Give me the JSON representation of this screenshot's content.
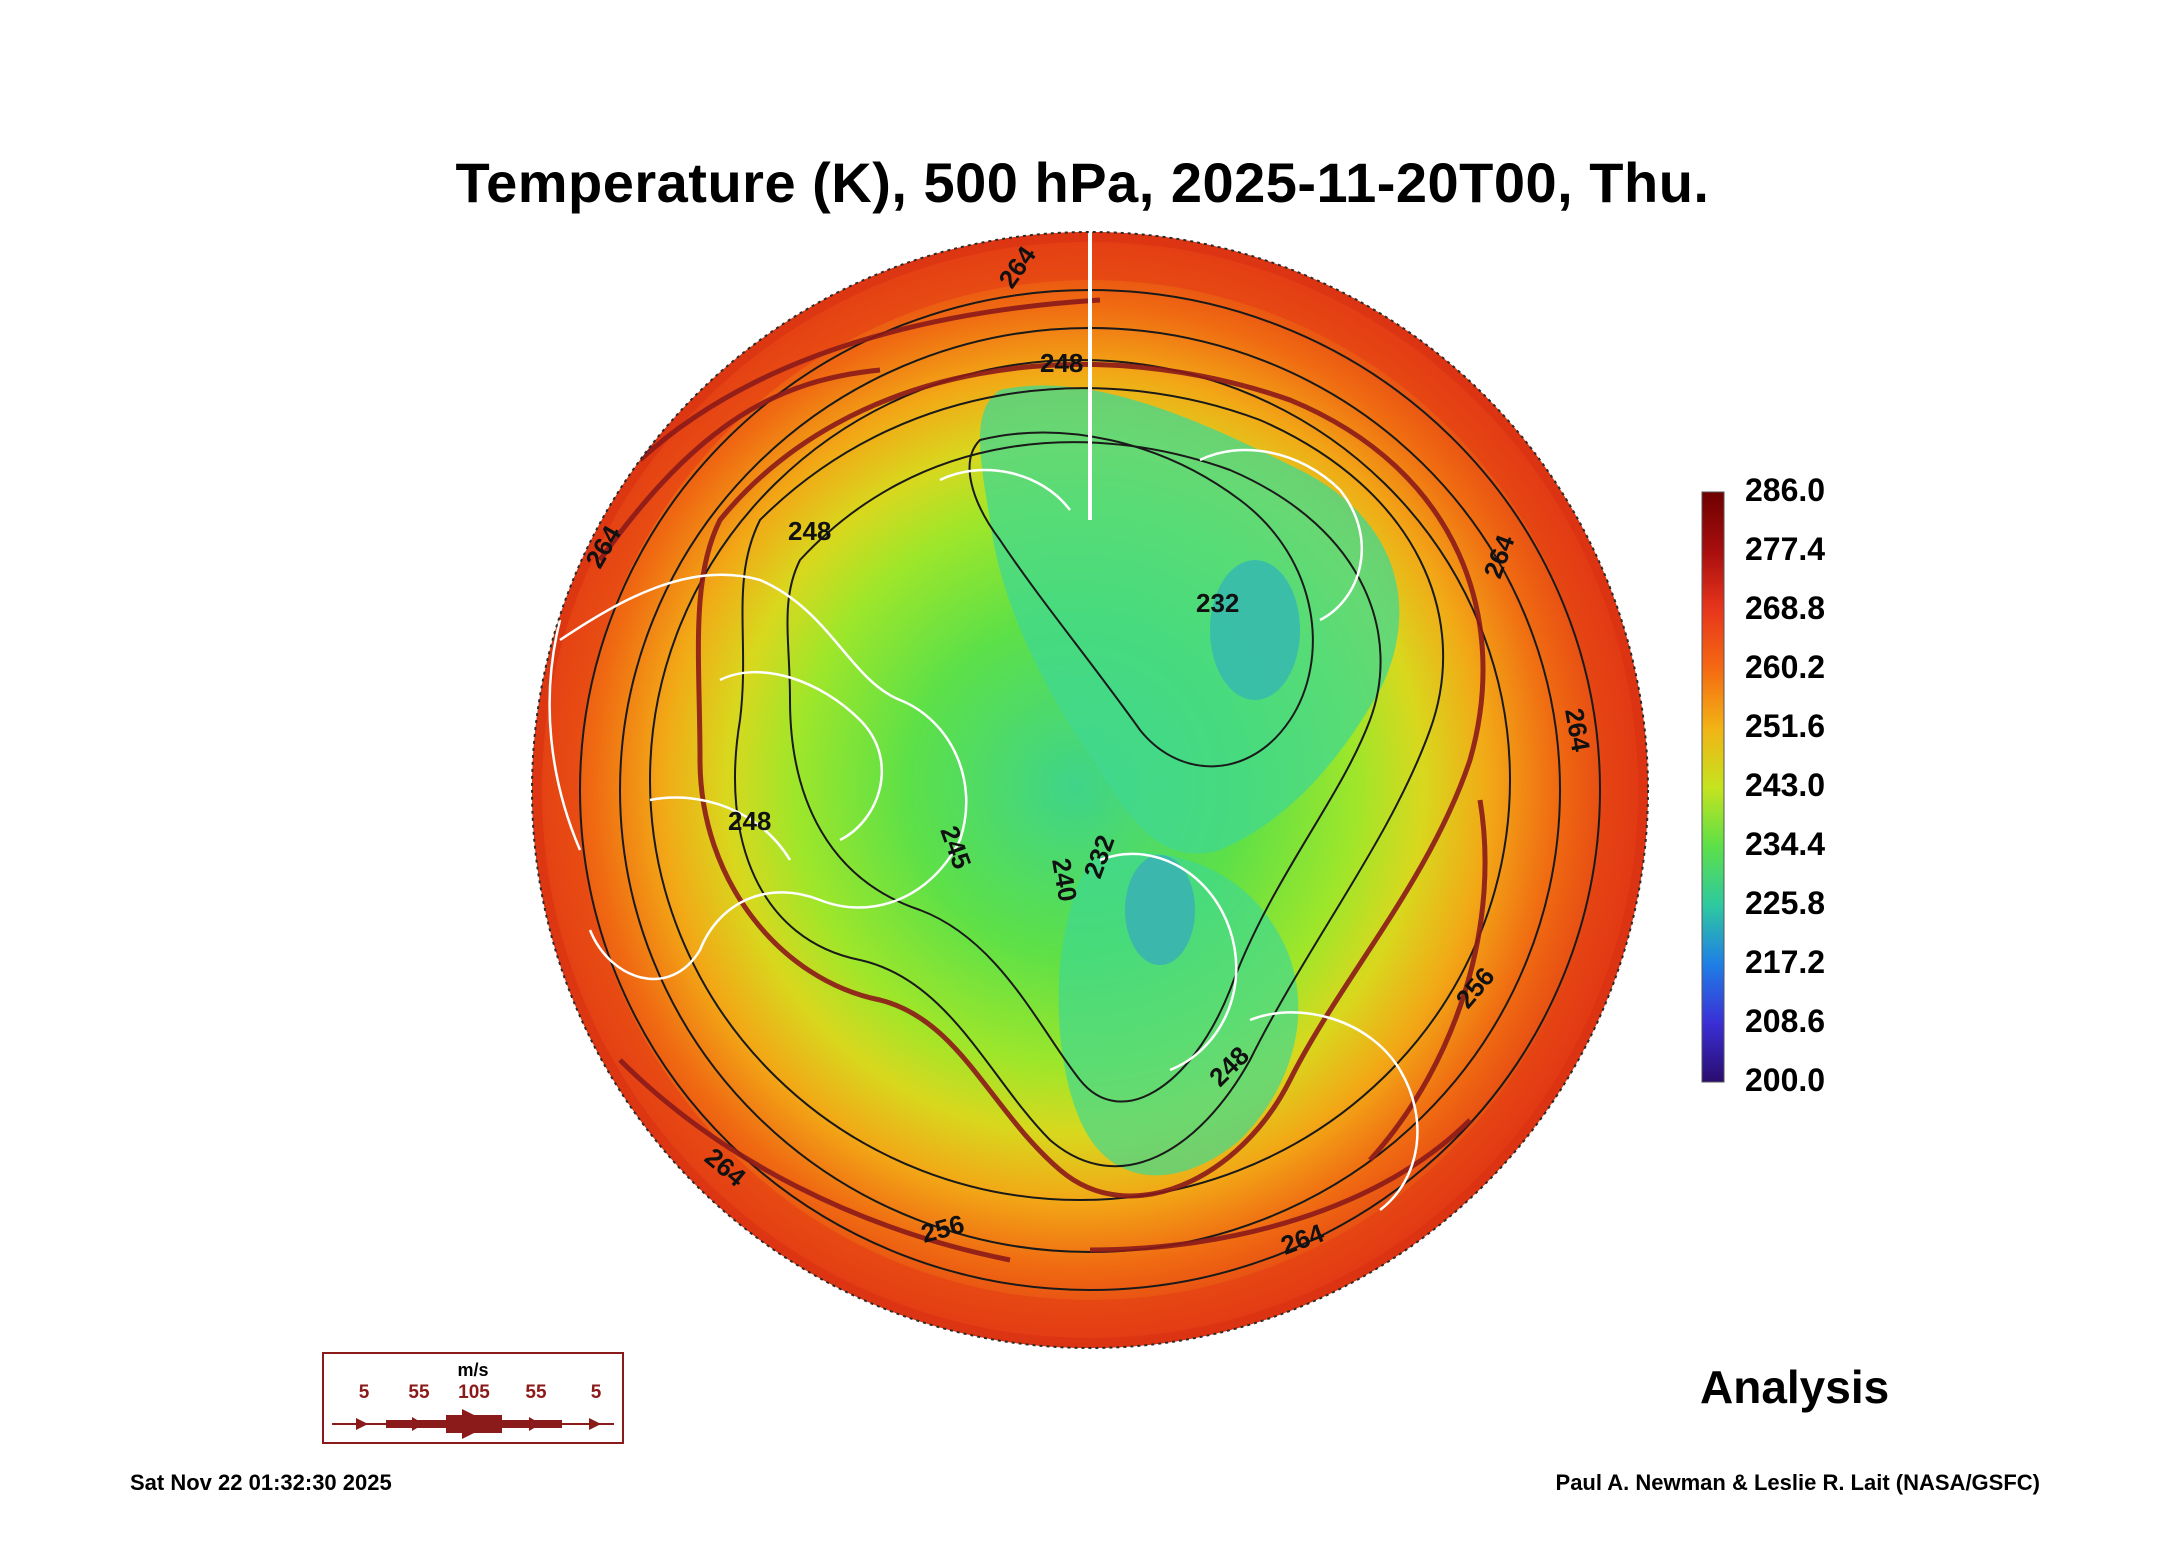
{
  "title": "Temperature (K), 500 hPa, 2025-11-20T00, Thu.",
  "colorbar": {
    "labels": [
      "286.0",
      "277.4",
      "268.8",
      "260.2",
      "251.6",
      "243.0",
      "234.4",
      "225.8",
      "217.2",
      "208.6",
      "200.0"
    ],
    "stops": [
      "#6e0000",
      "#a80e0e",
      "#e8361c",
      "#f56a12",
      "#f2b315",
      "#c6e31e",
      "#5de048",
      "#2ec9a0",
      "#1f7fe6",
      "#3a2fd6",
      "#2a0c6e"
    ]
  },
  "contour_labels": [
    "264",
    "248",
    "248",
    "264",
    "264",
    "232",
    "264",
    "248",
    "245",
    "240",
    "232",
    "256",
    "248",
    "264",
    "256",
    "264"
  ],
  "wind_legend": {
    "unit": "m/s",
    "ticks": [
      "5",
      "55",
      "105",
      "55",
      "5"
    ]
  },
  "analysis_label": "Analysis",
  "timestamp": "Sat Nov 22 01:32:30 2025",
  "credit": "Paul A. Newman & Leslie R. Lait (NASA/GSFC)",
  "colors": {
    "wind": "#8b1a1a",
    "contour": "#1a1a1a",
    "coast": "#ffffff"
  }
}
